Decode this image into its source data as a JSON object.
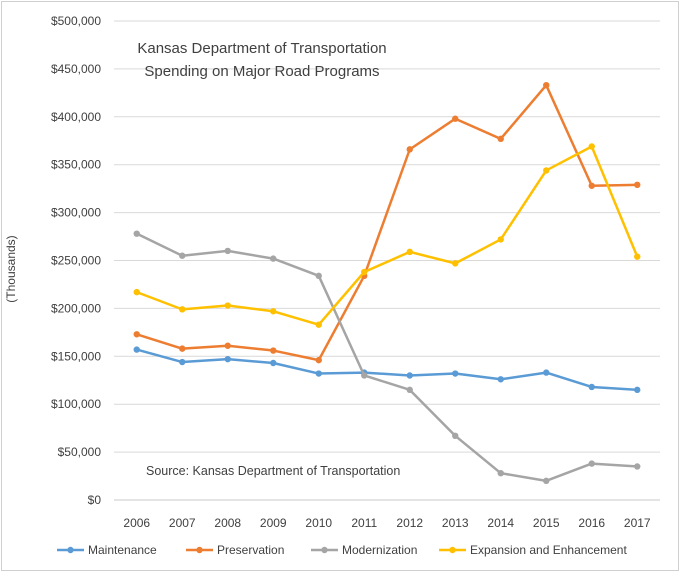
{
  "chart_data": {
    "type": "line",
    "title": "Kansas Department of Transportation",
    "subtitle": "Spending on Major Road Programs",
    "note": "Source: Kansas Department of Transportation",
    "ylabel": "(Thousands)",
    "xlabel": "",
    "ylim": [
      0,
      500000
    ],
    "y_ticks": [
      "$0",
      "$50,000",
      "$100,000",
      "$150,000",
      "$200,000",
      "$250,000",
      "$300,000",
      "$350,000",
      "$400,000",
      "$450,000",
      "$500,000"
    ],
    "grid": "horizontal",
    "legend_position": "bottom",
    "categories": [
      "2006",
      "2007",
      "2008",
      "2009",
      "2010",
      "2011",
      "2012",
      "2013",
      "2014",
      "2015",
      "2016",
      "2017"
    ],
    "series": [
      {
        "name": "Maintenance",
        "color": "#5b9bd5",
        "values": [
          157000,
          144000,
          147000,
          143000,
          132000,
          133000,
          130000,
          132000,
          126000,
          133000,
          118000,
          115000
        ]
      },
      {
        "name": "Preservation",
        "color": "#ed7d31",
        "values": [
          173000,
          158000,
          161000,
          156000,
          146000,
          234000,
          366000,
          398000,
          377000,
          433000,
          328000,
          329000
        ]
      },
      {
        "name": "Modernization",
        "color": "#a5a5a5",
        "values": [
          278000,
          255000,
          260000,
          252000,
          234000,
          130000,
          115000,
          67000,
          28000,
          20000,
          38000,
          35000
        ]
      },
      {
        "name": "Expansion and Enhancement",
        "color": "#ffc000",
        "values": [
          217000,
          199000,
          203000,
          197000,
          183000,
          238000,
          259000,
          247000,
          272000,
          344000,
          369000,
          254000
        ]
      }
    ]
  }
}
